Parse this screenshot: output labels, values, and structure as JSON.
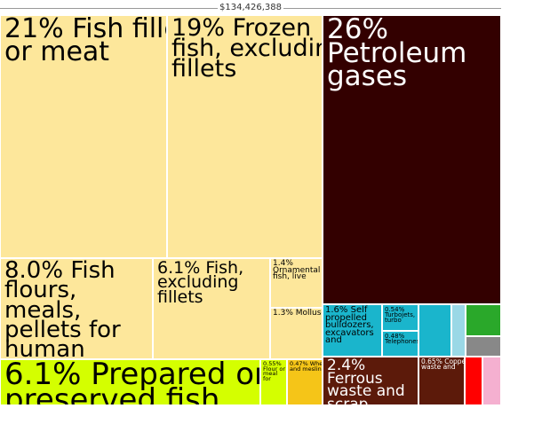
{
  "chart_data": {
    "type": "treemap",
    "title": "$134,426,388",
    "categories": [
      "Fish fillets or meat",
      "Frozen fish, excluding fillets",
      "Petroleum gases",
      "Fish flours, meals, pellets for human",
      "Fish, excluding fillets",
      "Ornamental fish, live",
      "Molluscs",
      "Prepared or preserved fish",
      "Flour or meal for",
      "Wheat and meslin",
      "Self propelled bulldozers, excavators and",
      "Turbojets, turbo",
      "Telephones",
      "Ferrous waste and scrap",
      "Copper waste and"
    ],
    "values": [
      21,
      19,
      26,
      8.0,
      6.1,
      1.4,
      1.3,
      6.1,
      0.55,
      0.47,
      1.6,
      0.54,
      0.48,
      2.4,
      0.65
    ],
    "value_labels": [
      "21%",
      "19%",
      "26%",
      "8.0%",
      "6.1%",
      "1.4%",
      "1.3%",
      "6.1%",
      "0.55%",
      "0.47%",
      "1.6%",
      "0.54%",
      "0.48%",
      "2.4%",
      "0.65%"
    ],
    "colors": [
      "#fde79b",
      "#fde79b",
      "#330000",
      "#fde79b",
      "#fde79b",
      "#fde79b",
      "#fde79b",
      "#d4ff00",
      "#d4ff00",
      "#f5c518",
      "#1ab5cc",
      "#1ab5cc",
      "#1ab5cc",
      "#5c1a0a",
      "#5c1a0a"
    ]
  }
}
